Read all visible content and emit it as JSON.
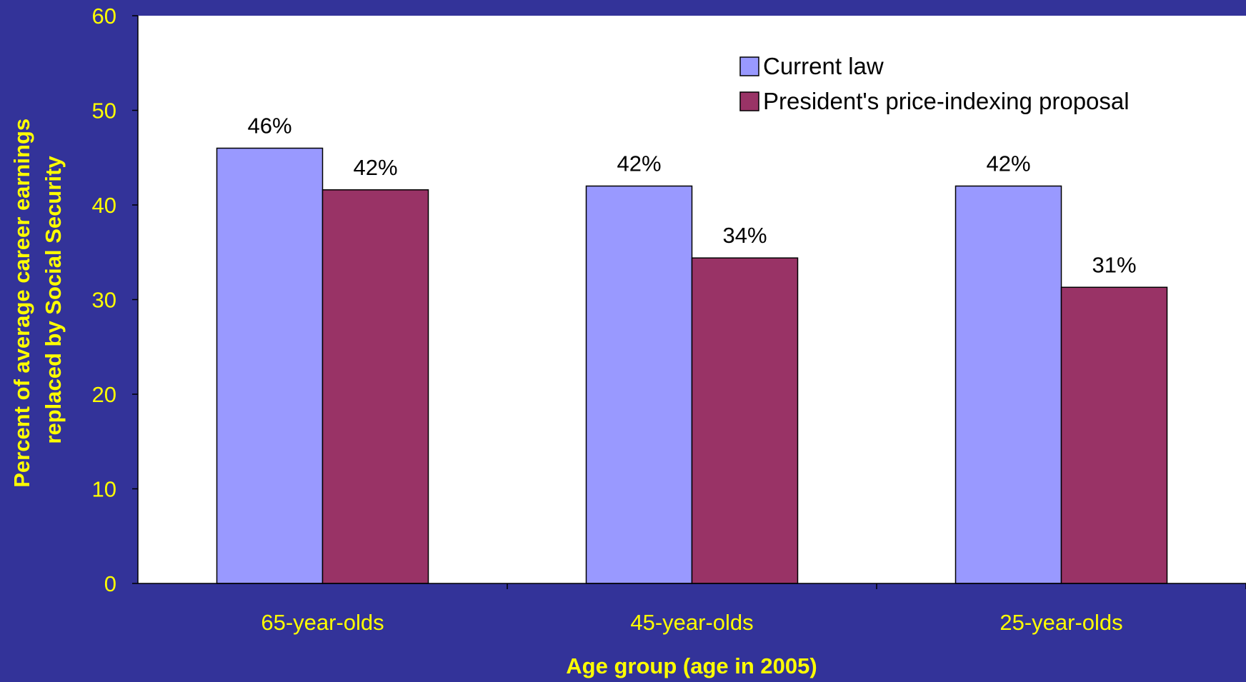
{
  "chart_data": {
    "type": "bar",
    "categories": [
      "65-year-olds",
      "45-year-olds",
      "25-year-olds"
    ],
    "series": [
      {
        "name": "Current law",
        "values": [
          46,
          42,
          42
        ],
        "labels": [
          "46%",
          "42%",
          "42%"
        ],
        "color": "#9999ff"
      },
      {
        "name": "President's price-indexing proposal",
        "values": [
          41.6,
          34.4,
          31.3
        ],
        "labels": [
          "42%",
          "34%",
          "31%"
        ],
        "color": "#993366"
      }
    ],
    "xlabel": "Age group (age in 2005)",
    "ylabel_lines": [
      "Percent of average career earnings",
      "replaced by Social Security"
    ],
    "ylim": [
      0,
      60
    ],
    "yticks": [
      0,
      10,
      20,
      30,
      40,
      50,
      60
    ],
    "legend_position": "top-right",
    "grid": false,
    "colors": {
      "background": "#333399",
      "plot_area": "#ffffff",
      "axis_text": "#ffff00"
    }
  }
}
